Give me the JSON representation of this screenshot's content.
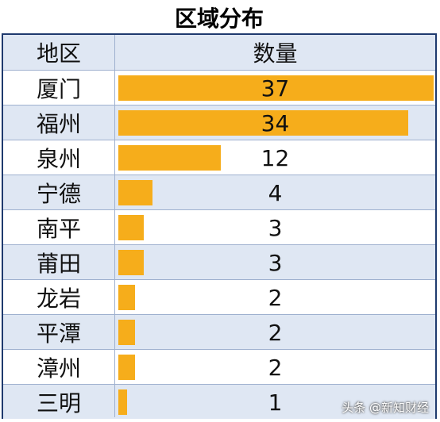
{
  "chart_data": {
    "type": "bar",
    "title": "区域分布",
    "header": {
      "region": "地区",
      "count": "数量"
    },
    "categories": [
      "厦门",
      "福州",
      "泉州",
      "宁德",
      "南平",
      "莆田",
      "龙岩",
      "平潭",
      "漳州",
      "三明"
    ],
    "values": [
      37,
      34,
      12,
      4,
      3,
      3,
      2,
      2,
      2,
      1
    ],
    "xlim": [
      0,
      37
    ],
    "bar_color": "#f6ad1b",
    "header_bg": "#dfe7f3",
    "border_color": "#1f3a6e"
  },
  "watermark": "头条 @新知财经"
}
